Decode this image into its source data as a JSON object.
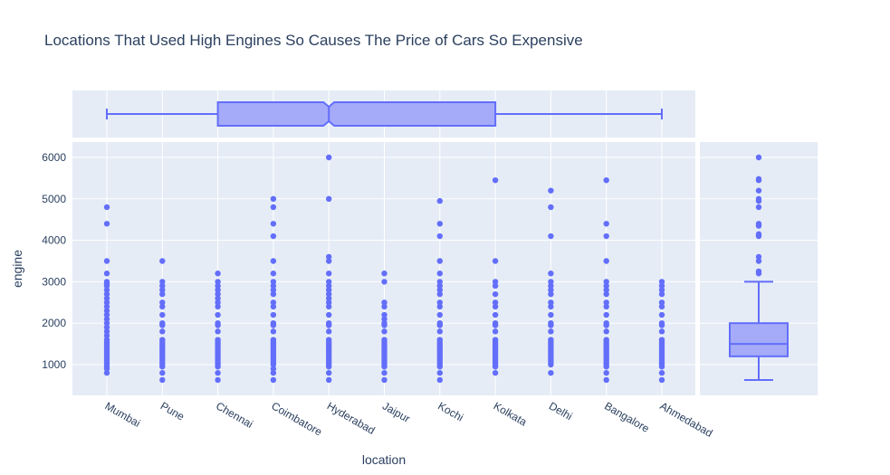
{
  "colors": {
    "marker": "#636efa",
    "box_fill": "#a5abf8",
    "plot_bg": "#e5ecf6",
    "grid": "#ffffff",
    "text": "#2a3f5f"
  },
  "chart_data": {
    "type": "scatter",
    "title": "Locations That Used High Engines So Causes The Price of Cars So Expensive",
    "xlabel": "location",
    "ylabel": "engine",
    "categories": [
      "Mumbai",
      "Pune",
      "Chennai",
      "Coimbatore",
      "Hyderabad",
      "Jaipur",
      "Kochi",
      "Kolkata",
      "Delhi",
      "Bangalore",
      "Ahmedabad"
    ],
    "yticks": [
      1000,
      2000,
      3000,
      4000,
      5000,
      6000
    ],
    "ylim": [
      550,
      6400
    ],
    "grid": true,
    "series": [
      {
        "category": "Mumbai",
        "values": [
          800,
          900,
          950,
          1000,
          1050,
          1100,
          1150,
          1200,
          1250,
          1300,
          1350,
          1400,
          1450,
          1500,
          1550,
          1600,
          1700,
          1800,
          1900,
          2000,
          2100,
          2200,
          2300,
          2400,
          2500,
          2600,
          2700,
          2800,
          2900,
          2950,
          3000,
          3200,
          3500,
          4400,
          4800
        ]
      },
      {
        "category": "Pune",
        "values": [
          630,
          800,
          950,
          1000,
          1050,
          1100,
          1150,
          1200,
          1250,
          1300,
          1350,
          1400,
          1450,
          1500,
          1550,
          1600,
          1800,
          1950,
          2000,
          2200,
          2400,
          2500,
          2700,
          2800,
          2900,
          3000,
          3500
        ]
      },
      {
        "category": "Chennai",
        "values": [
          630,
          800,
          950,
          1000,
          1050,
          1100,
          1150,
          1200,
          1250,
          1300,
          1350,
          1400,
          1450,
          1500,
          1550,
          1600,
          1800,
          1950,
          2000,
          2200,
          2400,
          2500,
          2600,
          2700,
          2800,
          2900,
          3000,
          3200
        ]
      },
      {
        "category": "Coimbatore",
        "values": [
          630,
          800,
          900,
          1000,
          1050,
          1100,
          1150,
          1200,
          1250,
          1300,
          1350,
          1400,
          1450,
          1500,
          1550,
          1600,
          1800,
          1950,
          2000,
          2200,
          2400,
          2500,
          2700,
          2800,
          2900,
          3000,
          3200,
          3500,
          4100,
          4400,
          4800,
          5000
        ]
      },
      {
        "category": "Hyderabad",
        "values": [
          630,
          800,
          950,
          1000,
          1050,
          1100,
          1150,
          1200,
          1250,
          1300,
          1350,
          1400,
          1450,
          1500,
          1550,
          1600,
          1800,
          1950,
          2000,
          2200,
          2400,
          2500,
          2600,
          2700,
          2800,
          2900,
          3000,
          3200,
          3500,
          3600,
          5000,
          6000
        ]
      },
      {
        "category": "Jaipur",
        "values": [
          630,
          800,
          950,
          1000,
          1050,
          1100,
          1150,
          1200,
          1250,
          1300,
          1350,
          1400,
          1450,
          1500,
          1550,
          1600,
          1800,
          1950,
          2000,
          2100,
          2200,
          2400,
          2500,
          3000,
          3200
        ]
      },
      {
        "category": "Kochi",
        "values": [
          630,
          800,
          950,
          1000,
          1050,
          1100,
          1150,
          1200,
          1250,
          1300,
          1350,
          1400,
          1450,
          1500,
          1550,
          1600,
          1800,
          1950,
          2000,
          2200,
          2400,
          2500,
          2700,
          2800,
          2900,
          3000,
          3200,
          3500,
          4100,
          4400,
          4950
        ]
      },
      {
        "category": "Kolkata",
        "values": [
          800,
          950,
          1000,
          1050,
          1100,
          1150,
          1200,
          1250,
          1300,
          1350,
          1400,
          1450,
          1500,
          1550,
          1600,
          1800,
          1950,
          2000,
          2200,
          2400,
          2500,
          2700,
          2900,
          3000,
          3500,
          5450
        ]
      },
      {
        "category": "Delhi",
        "values": [
          800,
          1000,
          1050,
          1100,
          1150,
          1200,
          1250,
          1300,
          1350,
          1400,
          1450,
          1500,
          1550,
          1600,
          1800,
          1950,
          2000,
          2200,
          2400,
          2500,
          2700,
          2800,
          2900,
          3000,
          3200,
          4100,
          4800,
          5200
        ]
      },
      {
        "category": "Bangalore",
        "values": [
          630,
          800,
          950,
          1000,
          1050,
          1100,
          1150,
          1200,
          1250,
          1300,
          1350,
          1400,
          1450,
          1500,
          1550,
          1600,
          1800,
          1950,
          2000,
          2200,
          2400,
          2500,
          2700,
          2800,
          2900,
          3000,
          3500,
          4100,
          4400,
          5450
        ]
      },
      {
        "category": "Ahmedabad",
        "values": [
          630,
          800,
          950,
          1000,
          1050,
          1100,
          1150,
          1200,
          1250,
          1300,
          1350,
          1400,
          1450,
          1500,
          1550,
          1600,
          1800,
          1950,
          2000,
          2200,
          2400,
          2500,
          2700,
          2800,
          2900,
          3000
        ]
      }
    ],
    "marginal_x": {
      "type": "box",
      "orientation": "horizontal",
      "notched": true,
      "whisker_low": "Mumbai",
      "q1": "Chennai",
      "median": "Hyderabad",
      "q3": "Kolkata",
      "whisker_high": "Ahmedabad"
    },
    "marginal_y": {
      "type": "box",
      "orientation": "vertical",
      "whisker_low": 630,
      "q1": 1200,
      "median": 1500,
      "q3": 2000,
      "whisker_high": 3000,
      "outliers": [
        3200,
        3250,
        3500,
        3600,
        4100,
        4150,
        4350,
        4400,
        4800,
        4950,
        5000,
        5200,
        5450,
        5480,
        6000
      ]
    }
  }
}
